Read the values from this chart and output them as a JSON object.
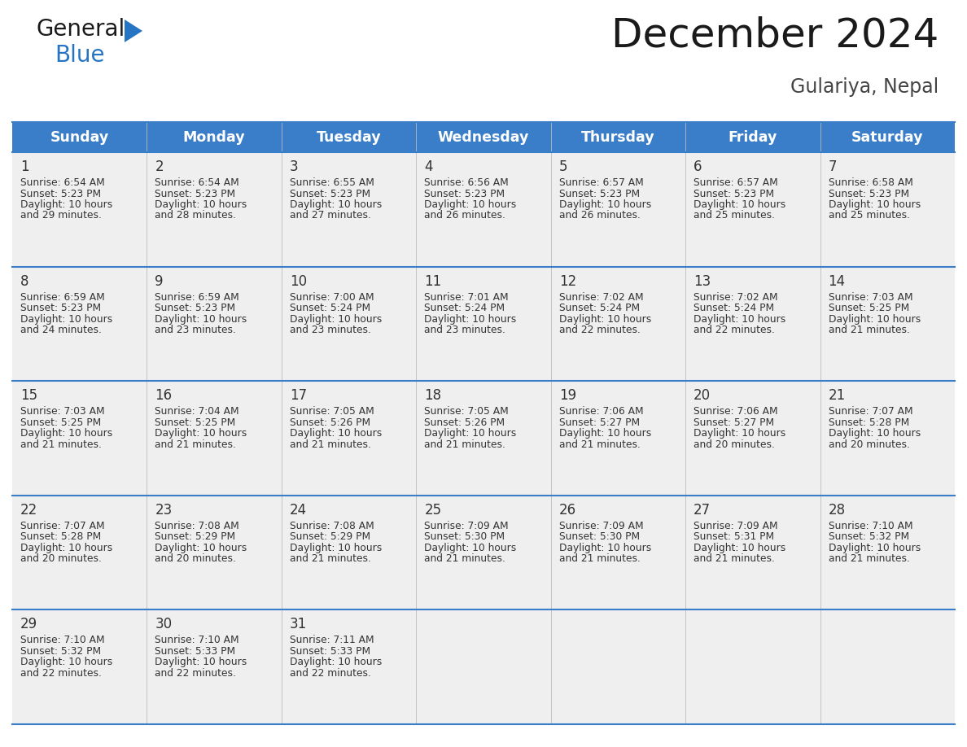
{
  "title": "December 2024",
  "subtitle": "Gulariya, Nepal",
  "days_of_week": [
    "Sunday",
    "Monday",
    "Tuesday",
    "Wednesday",
    "Thursday",
    "Friday",
    "Saturday"
  ],
  "header_bg_color": "#3A7DC9",
  "header_text_color": "#FFFFFF",
  "cell_bg_color": "#EFEFEF",
  "separator_color": "#3A7DC9",
  "title_color": "#1a1a1a",
  "subtitle_color": "#444444",
  "text_color": "#333333",
  "day_num_color": "#333333",
  "calendar_data": [
    [
      {
        "day": 1,
        "sunrise": "6:54 AM",
        "sunset": "5:23 PM",
        "daylight_hours": 10,
        "daylight_minutes": 29
      },
      {
        "day": 2,
        "sunrise": "6:54 AM",
        "sunset": "5:23 PM",
        "daylight_hours": 10,
        "daylight_minutes": 28
      },
      {
        "day": 3,
        "sunrise": "6:55 AM",
        "sunset": "5:23 PM",
        "daylight_hours": 10,
        "daylight_minutes": 27
      },
      {
        "day": 4,
        "sunrise": "6:56 AM",
        "sunset": "5:23 PM",
        "daylight_hours": 10,
        "daylight_minutes": 26
      },
      {
        "day": 5,
        "sunrise": "6:57 AM",
        "sunset": "5:23 PM",
        "daylight_hours": 10,
        "daylight_minutes": 26
      },
      {
        "day": 6,
        "sunrise": "6:57 AM",
        "sunset": "5:23 PM",
        "daylight_hours": 10,
        "daylight_minutes": 25
      },
      {
        "day": 7,
        "sunrise": "6:58 AM",
        "sunset": "5:23 PM",
        "daylight_hours": 10,
        "daylight_minutes": 25
      }
    ],
    [
      {
        "day": 8,
        "sunrise": "6:59 AM",
        "sunset": "5:23 PM",
        "daylight_hours": 10,
        "daylight_minutes": 24
      },
      {
        "day": 9,
        "sunrise": "6:59 AM",
        "sunset": "5:23 PM",
        "daylight_hours": 10,
        "daylight_minutes": 23
      },
      {
        "day": 10,
        "sunrise": "7:00 AM",
        "sunset": "5:24 PM",
        "daylight_hours": 10,
        "daylight_minutes": 23
      },
      {
        "day": 11,
        "sunrise": "7:01 AM",
        "sunset": "5:24 PM",
        "daylight_hours": 10,
        "daylight_minutes": 23
      },
      {
        "day": 12,
        "sunrise": "7:02 AM",
        "sunset": "5:24 PM",
        "daylight_hours": 10,
        "daylight_minutes": 22
      },
      {
        "day": 13,
        "sunrise": "7:02 AM",
        "sunset": "5:24 PM",
        "daylight_hours": 10,
        "daylight_minutes": 22
      },
      {
        "day": 14,
        "sunrise": "7:03 AM",
        "sunset": "5:25 PM",
        "daylight_hours": 10,
        "daylight_minutes": 21
      }
    ],
    [
      {
        "day": 15,
        "sunrise": "7:03 AM",
        "sunset": "5:25 PM",
        "daylight_hours": 10,
        "daylight_minutes": 21
      },
      {
        "day": 16,
        "sunrise": "7:04 AM",
        "sunset": "5:25 PM",
        "daylight_hours": 10,
        "daylight_minutes": 21
      },
      {
        "day": 17,
        "sunrise": "7:05 AM",
        "sunset": "5:26 PM",
        "daylight_hours": 10,
        "daylight_minutes": 21
      },
      {
        "day": 18,
        "sunrise": "7:05 AM",
        "sunset": "5:26 PM",
        "daylight_hours": 10,
        "daylight_minutes": 21
      },
      {
        "day": 19,
        "sunrise": "7:06 AM",
        "sunset": "5:27 PM",
        "daylight_hours": 10,
        "daylight_minutes": 21
      },
      {
        "day": 20,
        "sunrise": "7:06 AM",
        "sunset": "5:27 PM",
        "daylight_hours": 10,
        "daylight_minutes": 20
      },
      {
        "day": 21,
        "sunrise": "7:07 AM",
        "sunset": "5:28 PM",
        "daylight_hours": 10,
        "daylight_minutes": 20
      }
    ],
    [
      {
        "day": 22,
        "sunrise": "7:07 AM",
        "sunset": "5:28 PM",
        "daylight_hours": 10,
        "daylight_minutes": 20
      },
      {
        "day": 23,
        "sunrise": "7:08 AM",
        "sunset": "5:29 PM",
        "daylight_hours": 10,
        "daylight_minutes": 20
      },
      {
        "day": 24,
        "sunrise": "7:08 AM",
        "sunset": "5:29 PM",
        "daylight_hours": 10,
        "daylight_minutes": 21
      },
      {
        "day": 25,
        "sunrise": "7:09 AM",
        "sunset": "5:30 PM",
        "daylight_hours": 10,
        "daylight_minutes": 21
      },
      {
        "day": 26,
        "sunrise": "7:09 AM",
        "sunset": "5:30 PM",
        "daylight_hours": 10,
        "daylight_minutes": 21
      },
      {
        "day": 27,
        "sunrise": "7:09 AM",
        "sunset": "5:31 PM",
        "daylight_hours": 10,
        "daylight_minutes": 21
      },
      {
        "day": 28,
        "sunrise": "7:10 AM",
        "sunset": "5:32 PM",
        "daylight_hours": 10,
        "daylight_minutes": 21
      }
    ],
    [
      {
        "day": 29,
        "sunrise": "7:10 AM",
        "sunset": "5:32 PM",
        "daylight_hours": 10,
        "daylight_minutes": 22
      },
      {
        "day": 30,
        "sunrise": "7:10 AM",
        "sunset": "5:33 PM",
        "daylight_hours": 10,
        "daylight_minutes": 22
      },
      {
        "day": 31,
        "sunrise": "7:11 AM",
        "sunset": "5:33 PM",
        "daylight_hours": 10,
        "daylight_minutes": 22
      },
      null,
      null,
      null,
      null
    ]
  ],
  "logo_text_general": "General",
  "logo_text_blue": "Blue",
  "logo_color_general": "#1a1a1a",
  "logo_color_blue": "#2575C4",
  "logo_triangle_color": "#2575C4",
  "fig_width": 11.88,
  "fig_height": 9.18,
  "dpi": 100
}
